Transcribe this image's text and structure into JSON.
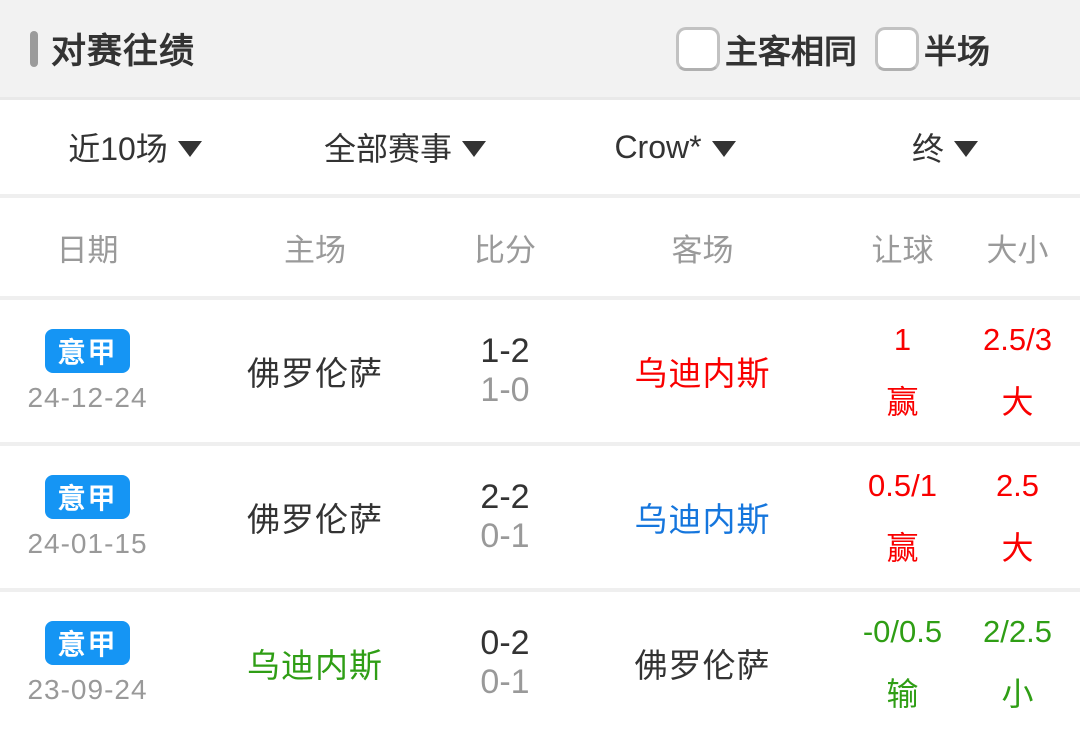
{
  "header": {
    "title": "对赛往绩",
    "checkboxes": [
      {
        "label": "主客相同",
        "checked": false
      },
      {
        "label": "半场",
        "checked": false
      }
    ]
  },
  "filters": [
    {
      "label": "近10场"
    },
    {
      "label": "全部赛事"
    },
    {
      "label": "Crow*"
    },
    {
      "label": "终"
    }
  ],
  "colors": {
    "badge_blue": "#1595f4",
    "win_red": "#f90000",
    "team_blue": "#1576dd",
    "lose_green": "#2f9e15",
    "text_dark": "#333333",
    "text_gray": "#999999"
  },
  "table": {
    "columns": [
      "日期",
      "主场",
      "比分",
      "客场",
      "让球",
      "大小"
    ],
    "rows": [
      {
        "league": "意甲",
        "league_color": "#1595f4",
        "date": "24-12-24",
        "home": "佛罗伦萨",
        "home_color": "#333333",
        "score_full": "1-2",
        "score_half": "1-0",
        "away": "乌迪内斯",
        "away_color": "#f90000",
        "handicap": "1",
        "handicap_result": "赢",
        "handicap_color": "#f90000",
        "ou": "2.5/3",
        "ou_result": "大",
        "ou_color": "#f90000"
      },
      {
        "league": "意甲",
        "league_color": "#1595f4",
        "date": "24-01-15",
        "home": "佛罗伦萨",
        "home_color": "#333333",
        "score_full": "2-2",
        "score_half": "0-1",
        "away": "乌迪内斯",
        "away_color": "#1576dd",
        "handicap": "0.5/1",
        "handicap_result": "赢",
        "handicap_color": "#f90000",
        "ou": "2.5",
        "ou_result": "大",
        "ou_color": "#f90000"
      },
      {
        "league": "意甲",
        "league_color": "#1595f4",
        "date": "23-09-24",
        "home": "乌迪内斯",
        "home_color": "#2f9e15",
        "score_full": "0-2",
        "score_half": "0-1",
        "away": "佛罗伦萨",
        "away_color": "#333333",
        "handicap": "-0/0.5",
        "handicap_result": "输",
        "handicap_color": "#2f9e15",
        "ou": "2/2.5",
        "ou_result": "小",
        "ou_color": "#2f9e15"
      }
    ]
  }
}
